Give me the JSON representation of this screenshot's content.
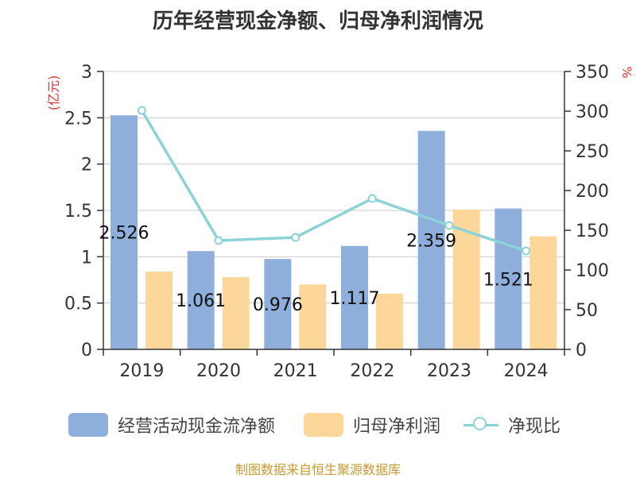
{
  "title": "历年经营现金净额、归母净利润情况",
  "source": "制图数据来自恒生聚源数据库",
  "chart_data": {
    "type": "bar",
    "categories": [
      "2019",
      "2020",
      "2021",
      "2022",
      "2023",
      "2024"
    ],
    "left_axis": {
      "unit": "(亿元)",
      "ylim": [
        0,
        3
      ],
      "ticks": [
        "0",
        "0.5",
        "1",
        "1.5",
        "2",
        "2.5",
        "3"
      ]
    },
    "right_axis": {
      "unit": "%",
      "ylim": [
        0,
        350
      ],
      "ticks": [
        "0",
        "50",
        "100",
        "150",
        "200",
        "250",
        "300",
        "350"
      ]
    },
    "series": [
      {
        "name": "经营活动现金流净额",
        "type": "bar",
        "axis": "left",
        "color": "#8eaedc",
        "values": [
          2.526,
          1.061,
          0.976,
          1.117,
          2.359,
          1.521
        ],
        "labels": [
          "2.526",
          "1.061",
          "0.976",
          "1.117",
          "2.359",
          "1.521"
        ]
      },
      {
        "name": "归母净利润",
        "type": "bar",
        "axis": "left",
        "color": "#fdd799",
        "values": [
          0.84,
          0.78,
          0.7,
          0.6,
          1.51,
          1.22
        ]
      },
      {
        "name": "净现比",
        "type": "line",
        "axis": "right",
        "color": "#8bd3d8",
        "values": [
          301,
          137,
          141,
          190,
          156,
          124
        ]
      }
    ],
    "grid": true,
    "legend_position": "bottom"
  }
}
